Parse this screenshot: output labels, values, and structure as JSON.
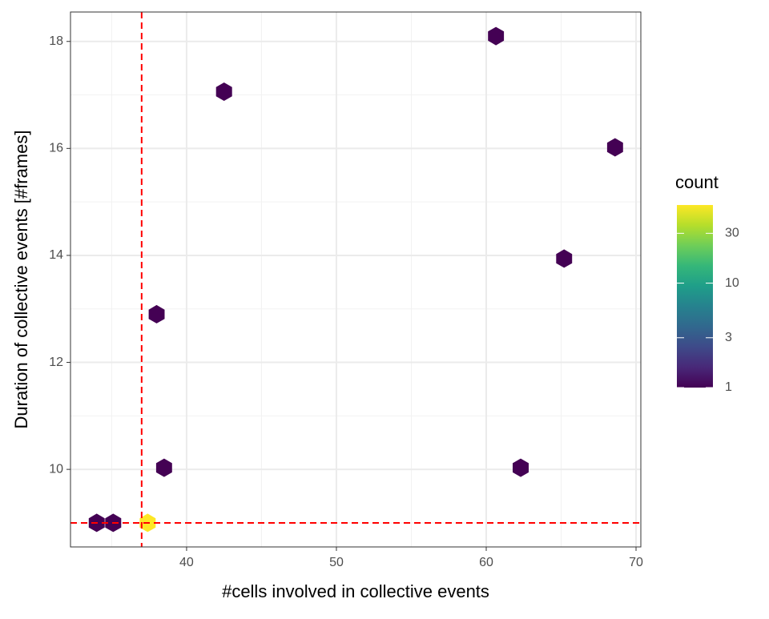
{
  "chart_data": {
    "type": "hexbin",
    "x_label": "#cells involved in collective events",
    "y_label": "Duration of collective events [#frames]",
    "x": [
      34.0,
      35.1,
      37.4,
      38.0,
      38.5,
      42.5,
      60.65,
      62.3,
      65.2,
      68.6
    ],
    "y": [
      9.0,
      9.0,
      9.0,
      12.9,
      10.03,
      17.06,
      18.1,
      10.03,
      13.94,
      16.02
    ],
    "counts": [
      1,
      1,
      56,
      1,
      1,
      1,
      1,
      1,
      1,
      1
    ],
    "xlim": [
      32.25,
      70.32
    ],
    "xticks": [
      40,
      50,
      60,
      70
    ],
    "xminor": [
      35,
      45,
      55,
      65
    ],
    "ylim": [
      8.55,
      18.55
    ],
    "yticks": [
      10,
      12,
      14,
      16,
      18
    ],
    "yminor": [
      9,
      11,
      13,
      15,
      17
    ],
    "grid": true,
    "legend_title": "count",
    "colorlim": [
      1,
      56
    ],
    "colorticks": [
      1,
      3,
      10,
      30
    ],
    "color_log": true,
    "colorscale": [
      "#440154",
      "#482878",
      "#3e4a89",
      "#31688e",
      "#26828e",
      "#1f9e89",
      "#35b779",
      "#6ece58",
      "#b5de2b",
      "#fde725"
    ],
    "vline": 37,
    "hline": 9,
    "line_color": "#ff0000"
  }
}
